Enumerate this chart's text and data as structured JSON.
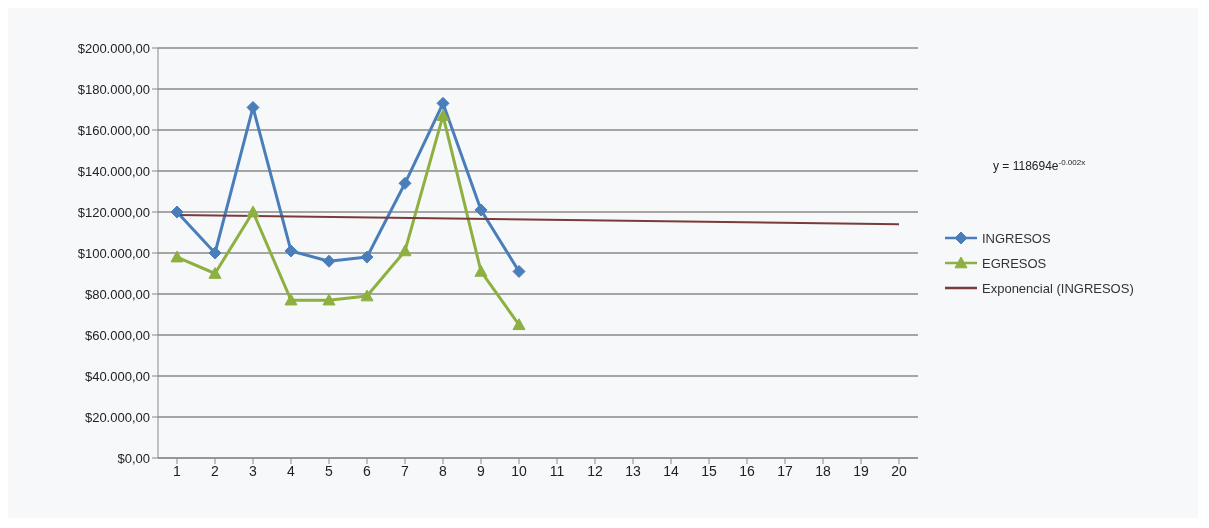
{
  "chart_data": {
    "type": "line",
    "xlim": [
      0.5,
      20.5
    ],
    "xticks": [
      1,
      2,
      3,
      4,
      5,
      6,
      7,
      8,
      9,
      10,
      11,
      12,
      13,
      14,
      15,
      16,
      17,
      18,
      19,
      20
    ],
    "ylim": [
      0,
      200000
    ],
    "yticks": [
      {
        "value": 0,
        "label": "$0,00"
      },
      {
        "value": 20000,
        "label": "$20.000,00"
      },
      {
        "value": 40000,
        "label": "$40.000,00"
      },
      {
        "value": 60000,
        "label": "$60.000,00"
      },
      {
        "value": 80000,
        "label": "$80.000,00"
      },
      {
        "value": 100000,
        "label": "$100.000,00"
      },
      {
        "value": 120000,
        "label": "$120.000,00"
      },
      {
        "value": 140000,
        "label": "$140.000,00"
      },
      {
        "value": 160000,
        "label": "$160.000,00"
      },
      {
        "value": 180000,
        "label": "$180.000,00"
      },
      {
        "value": 200000,
        "label": "$200.000,00"
      }
    ],
    "grid": "y",
    "legend": "right",
    "series": [
      {
        "name": "INGRESOS",
        "color": "#4a7ebb",
        "marker": "diamond",
        "x": [
          1,
          2,
          3,
          4,
          5,
          6,
          7,
          8,
          9,
          10
        ],
        "values": [
          120000,
          100000,
          171000,
          101000,
          96000,
          98000,
          134000,
          173000,
          121000,
          91000
        ]
      },
      {
        "name": "EGRESOS",
        "color": "#8db040",
        "marker": "triangle",
        "x": [
          1,
          2,
          3,
          4,
          5,
          6,
          7,
          8,
          9,
          10
        ],
        "values": [
          98000,
          90000,
          120000,
          77000,
          77000,
          79000,
          101000,
          167000,
          91000,
          65000
        ]
      },
      {
        "name": "Exponencial (INGRESOS)",
        "color": "#7a3b3b",
        "marker": "none",
        "x": [
          1,
          20
        ],
        "values": [
          118500,
          114000
        ]
      }
    ],
    "annotations": [
      "y = 118694e$^{-0.002x}$"
    ]
  }
}
